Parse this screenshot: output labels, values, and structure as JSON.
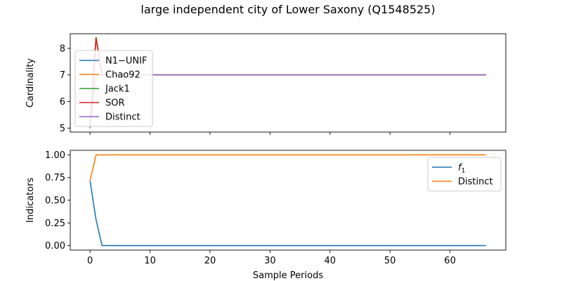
{
  "figure": {
    "title": "large independent city of Lower Saxony (Q1548525)"
  },
  "chart_data": [
    {
      "type": "line",
      "title": "",
      "xlabel": "",
      "ylabel": "Cardinality",
      "xlim": [
        -3.3,
        69.3
      ],
      "ylim": [
        4.85,
        8.55
      ],
      "yticks": [
        5,
        6,
        7,
        8
      ],
      "xticks": [
        0,
        10,
        20,
        30,
        40,
        50,
        60
      ],
      "show_x_tick_labels": false,
      "grid": false,
      "legend_position": "upper-left",
      "series": [
        {
          "name": "N1−UNIF",
          "color": "#1f77b4",
          "x": [
            0,
            1,
            2,
            66
          ],
          "y": [
            5.0,
            8.4,
            7.0,
            7.0
          ]
        },
        {
          "name": "Chao92",
          "color": "#ff7f0e",
          "x": [
            0,
            1,
            2,
            66
          ],
          "y": [
            5.0,
            8.4,
            7.0,
            7.0
          ]
        },
        {
          "name": "Jack1",
          "color": "#2ca02c",
          "x": [
            0,
            1,
            2,
            66
          ],
          "y": [
            5.0,
            8.4,
            7.0,
            7.0
          ]
        },
        {
          "name": "SOR",
          "color": "#d62728",
          "x": [
            0,
            1,
            2,
            66
          ],
          "y": [
            5.0,
            8.4,
            7.0,
            7.0
          ]
        },
        {
          "name": "Distinct",
          "color": "#9467bd",
          "x": [
            0,
            1,
            66
          ],
          "y": [
            5.0,
            7.0,
            7.0
          ]
        }
      ]
    },
    {
      "type": "line",
      "title": "",
      "xlabel": "Sample Periods",
      "ylabel": "Indicators",
      "xlim": [
        -3.3,
        69.3
      ],
      "ylim": [
        -0.05,
        1.05
      ],
      "yticks": [
        0.0,
        0.25,
        0.5,
        0.75,
        1.0
      ],
      "ytick_labels": [
        "0.00",
        "0.25",
        "0.50",
        "0.75",
        "1.00"
      ],
      "xticks": [
        0,
        10,
        20,
        30,
        40,
        50,
        60
      ],
      "show_x_tick_labels": true,
      "grid": false,
      "legend_position": "upper-right",
      "series": [
        {
          "name": "f",
          "name_sub": "1",
          "color": "#1f77b4",
          "x": [
            0,
            1,
            2,
            66
          ],
          "y": [
            0.714,
            0.286,
            0.0,
            0.0
          ]
        },
        {
          "name": "Distinct",
          "color": "#ff7f0e",
          "x": [
            0,
            1,
            66
          ],
          "y": [
            0.714,
            1.0,
            1.0
          ]
        }
      ]
    }
  ]
}
